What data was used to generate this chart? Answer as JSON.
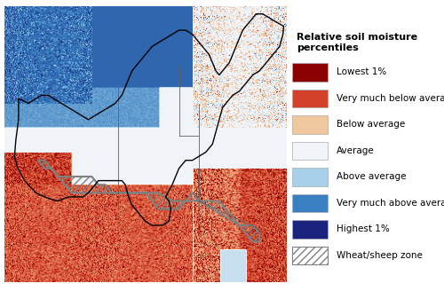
{
  "title": "Relative soil moisture\npercentiles",
  "legend_entries": [
    {
      "label": "Lowest 1%",
      "color": "#8B0000",
      "hatch": null
    },
    {
      "label": "Very much below average",
      "color": "#D2402A",
      "hatch": null
    },
    {
      "label": "Below average",
      "color": "#F0C8A0",
      "hatch": null
    },
    {
      "label": "Average",
      "color": "#F0F4F8",
      "hatch": null
    },
    {
      "label": "Above average",
      "color": "#A8D0E8",
      "hatch": null
    },
    {
      "label": "Very much above average",
      "color": "#3A7FC1",
      "hatch": null
    },
    {
      "label": "Highest 1%",
      "color": "#1A237E",
      "hatch": null
    },
    {
      "label": "Wheat/sheep zone",
      "color": "#FFFFFF",
      "hatch": "////"
    }
  ],
  "background_color": "#FFFFFF",
  "border_color": "#000000",
  "state_border_color": "#808080",
  "wheat_hatch_color": "#808080",
  "figsize": [
    5.0,
    3.28
  ],
  "dpi": 100
}
